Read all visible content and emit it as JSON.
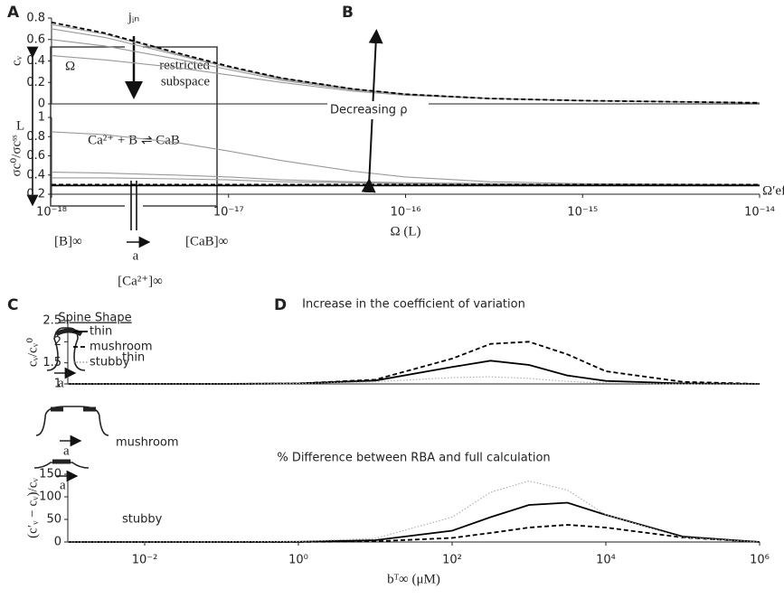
{
  "panel_labels": [
    "A",
    "B",
    "C",
    "D"
  ],
  "panel_a": {
    "flux": "jᵢₙ",
    "volume": "Ω",
    "length": "L",
    "subspace": [
      "restricted",
      "subspace"
    ],
    "reaction": "Ca²⁺ + B ⇌ CaB",
    "buffer": "[B]∞",
    "radius": "a",
    "bound": "[CaB]∞",
    "calcium": "[Ca²⁺]∞"
  },
  "panel_c": {
    "title": "Spine Shape",
    "shapes": [
      {
        "name": "thin",
        "radius": "a"
      },
      {
        "name": "mushroom",
        "radius": "a"
      },
      {
        "name": "stubby",
        "radius": "a"
      }
    ]
  },
  "chart_data": [
    {
      "type": "line",
      "xlog": true,
      "ylabel": "cᵥ",
      "annotation": "Decreasing ρ",
      "x": [
        1e-18,
        2e-18,
        5e-18,
        1e-17,
        2e-17,
        5e-17,
        1e-16,
        3e-16,
        1e-15,
        1e-14
      ],
      "xlim": [
        1e-18,
        1e-14
      ],
      "ylim": [
        0,
        0.8
      ],
      "yticks": [
        0,
        0.2,
        0.4,
        0.6,
        0.8
      ],
      "series": [
        {
          "color": "#999999",
          "dash": "solid",
          "values": [
            0.74,
            0.65,
            0.47,
            0.34,
            0.24,
            0.14,
            0.09,
            0.05,
            0.03,
            0.01
          ]
        },
        {
          "color": "#999999",
          "dash": "solid",
          "values": [
            0.7,
            0.62,
            0.46,
            0.34,
            0.23,
            0.14,
            0.09,
            0.05,
            0.03,
            0.01
          ]
        },
        {
          "color": "#999999",
          "dash": "solid",
          "values": [
            0.6,
            0.54,
            0.42,
            0.32,
            0.22,
            0.13,
            0.09,
            0.05,
            0.03,
            0.01
          ]
        },
        {
          "color": "#999999",
          "dash": "solid",
          "values": [
            0.45,
            0.41,
            0.34,
            0.27,
            0.2,
            0.12,
            0.08,
            0.05,
            0.03,
            0.01
          ]
        },
        {
          "color": "#000000",
          "dash": "dashed",
          "values": [
            0.76,
            0.66,
            0.48,
            0.35,
            0.24,
            0.14,
            0.09,
            0.05,
            0.03,
            0.01
          ]
        }
      ]
    },
    {
      "type": "line",
      "xlog": true,
      "ylabel": "σc⁰/σcˢˢ",
      "xlabel": "Ω (L)",
      "annotation": "Ω′eff/Ω",
      "x": [
        1e-18,
        2e-18,
        5e-18,
        1e-17,
        2e-17,
        5e-17,
        1e-16,
        3e-16,
        1e-15,
        1e-14
      ],
      "xlim": [
        1e-18,
        1e-14
      ],
      "ylim": [
        0.2,
        1
      ],
      "yticks": [
        0.2,
        0.4,
        0.6,
        0.8,
        1
      ],
      "xticks": [
        {
          "value": 1e-18,
          "label": "10⁻¹⁸"
        },
        {
          "value": 1e-17,
          "label": "10⁻¹⁷"
        },
        {
          "value": 1e-16,
          "label": "10⁻¹⁶"
        },
        {
          "value": 1e-15,
          "label": "10⁻¹⁵"
        },
        {
          "value": 1e-14,
          "label": "10⁻¹⁴"
        }
      ],
      "series": [
        {
          "color": "#999999",
          "dash": "solid",
          "values": [
            0.85,
            0.82,
            0.74,
            0.65,
            0.55,
            0.44,
            0.38,
            0.33,
            0.31,
            0.3
          ]
        },
        {
          "color": "#999999",
          "dash": "solid",
          "values": [
            0.43,
            0.42,
            0.4,
            0.38,
            0.35,
            0.33,
            0.32,
            0.31,
            0.3,
            0.3
          ]
        },
        {
          "color": "#999999",
          "dash": "solid",
          "values": [
            0.37,
            0.37,
            0.36,
            0.35,
            0.33,
            0.32,
            0.31,
            0.3,
            0.3,
            0.3
          ]
        },
        {
          "color": "#000000",
          "dash": "dashed",
          "values": [
            0.3,
            0.3,
            0.3,
            0.3,
            0.3,
            0.3,
            0.3,
            0.3,
            0.3,
            0.3
          ]
        },
        {
          "color": "#000000",
          "dash": "solid",
          "values": [
            0.29,
            0.29,
            0.29,
            0.29,
            0.29,
            0.29,
            0.29,
            0.29,
            0.29,
            0.29
          ]
        }
      ]
    },
    {
      "type": "line",
      "xlog": true,
      "title": "Increase in the coefficient of variation",
      "ylabel": "cᵥ/cᵥ⁰",
      "legend": "upper left",
      "x": [
        0.001,
        0.01,
        0.1,
        1,
        10,
        100,
        316,
        1000,
        3162,
        10000,
        100000,
        1000000
      ],
      "xlim": [
        0.001,
        1000000
      ],
      "ylim": [
        1,
        2.5
      ],
      "yticks": [
        1,
        1.5,
        2,
        2.5
      ],
      "series": [
        {
          "name": "thin",
          "color": "#000000",
          "dash": "solid",
          "values": [
            1,
            1,
            1,
            1.01,
            1.08,
            1.4,
            1.55,
            1.45,
            1.2,
            1.07,
            1.01,
            1
          ]
        },
        {
          "name": "mushroom",
          "color": "#000000",
          "dash": "dashed",
          "values": [
            1,
            1,
            1,
            1.01,
            1.1,
            1.6,
            1.95,
            2.0,
            1.7,
            1.3,
            1.05,
            1
          ]
        },
        {
          "name": "stubby",
          "color": "#aaaaaa",
          "dash": "dotted",
          "values": [
            1,
            1,
            1,
            1.01,
            1.05,
            1.15,
            1.17,
            1.13,
            1.06,
            1.02,
            1,
            1
          ]
        }
      ]
    },
    {
      "type": "line",
      "xlog": true,
      "title": "% Difference between RBA and full calculation",
      "ylabel": "(c′ᵥ − cᵥ)/cᵥ",
      "xlabel": "bᵀ∞ (μM)",
      "x": [
        0.001,
        0.01,
        0.1,
        1,
        10,
        100,
        316,
        1000,
        3162,
        10000,
        100000,
        1000000
      ],
      "xlim": [
        0.001,
        1000000
      ],
      "ylim": [
        0,
        150
      ],
      "yticks": [
        0,
        50,
        100,
        150
      ],
      "xticks": [
        {
          "value": 0.01,
          "label": "10⁻²"
        },
        {
          "value": 1,
          "label": "10⁰"
        },
        {
          "value": 100,
          "label": "10²"
        },
        {
          "value": 10000,
          "label": "10⁴"
        },
        {
          "value": 1000000,
          "label": "10⁶"
        }
      ],
      "series": [
        {
          "color": "#000000",
          "dash": "solid",
          "values": [
            0,
            0,
            0,
            0.5,
            4,
            25,
            55,
            82,
            87,
            60,
            12,
            0
          ]
        },
        {
          "color": "#000000",
          "dash": "dashed",
          "values": [
            0,
            0,
            0,
            0.2,
            1.5,
            9,
            20,
            32,
            38,
            32,
            10,
            0
          ]
        },
        {
          "color": "#aaaaaa",
          "dash": "dotted",
          "values": [
            0,
            0,
            0.2,
            1,
            8,
            55,
            110,
            135,
            115,
            60,
            10,
            0
          ]
        }
      ]
    }
  ]
}
